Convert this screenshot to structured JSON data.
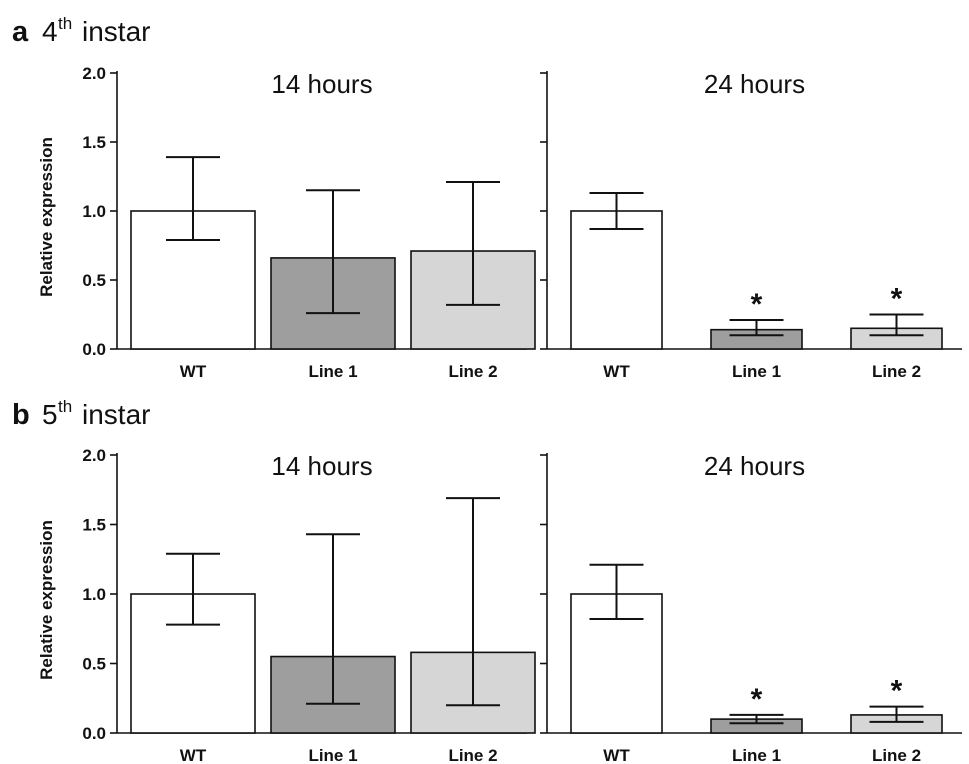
{
  "panels": [
    {
      "letter": "a",
      "title_number": "4",
      "title_sup": "th",
      "title_rest": "instar"
    },
    {
      "letter": "b",
      "title_number": "5",
      "title_sup": "th",
      "title_rest": "instar"
    }
  ],
  "colors": {
    "wt": "#ffffff",
    "line1": "#9e9e9e",
    "line2": "#d6d6d6",
    "stroke": "#111111"
  },
  "chart_data": [
    {
      "type": "bar",
      "panel": "a",
      "title": "14 hours",
      "ylabel": "Relative expression",
      "ylim": [
        0,
        2.0
      ],
      "yticks": [
        "0.0",
        "0.5",
        "1.0",
        "1.5",
        "2.0"
      ],
      "categories": [
        "WT",
        "Line 1",
        "Line 2"
      ],
      "values": [
        1.0,
        0.66,
        0.71
      ],
      "error_low": [
        0.79,
        0.26,
        0.32
      ],
      "error_high": [
        1.39,
        1.15,
        1.21
      ],
      "significance": [
        "",
        "",
        ""
      ]
    },
    {
      "type": "bar",
      "panel": "a",
      "title": "24 hours",
      "ylim": [
        0,
        2.0
      ],
      "categories": [
        "WT",
        "Line 1",
        "Line 2"
      ],
      "values": [
        1.0,
        0.14,
        0.15
      ],
      "error_low": [
        0.87,
        0.1,
        0.1
      ],
      "error_high": [
        1.13,
        0.21,
        0.25
      ],
      "significance": [
        "",
        "*",
        "*"
      ]
    },
    {
      "type": "bar",
      "panel": "b",
      "title": "14 hours",
      "ylabel": "Relative expression",
      "ylim": [
        0,
        2.0
      ],
      "yticks": [
        "0.0",
        "0.5",
        "1.0",
        "1.5",
        "2.0"
      ],
      "categories": [
        "WT",
        "Line 1",
        "Line 2"
      ],
      "values": [
        1.0,
        0.55,
        0.58
      ],
      "error_low": [
        0.78,
        0.21,
        0.2
      ],
      "error_high": [
        1.29,
        1.43,
        1.69
      ],
      "significance": [
        "",
        "",
        ""
      ]
    },
    {
      "type": "bar",
      "panel": "b",
      "title": "24 hours",
      "ylim": [
        0,
        2.0
      ],
      "categories": [
        "WT",
        "Line 1",
        "Line 2"
      ],
      "values": [
        1.0,
        0.1,
        0.13
      ],
      "error_low": [
        0.82,
        0.07,
        0.08
      ],
      "error_high": [
        1.21,
        0.13,
        0.19
      ],
      "significance": [
        "",
        "*",
        "*"
      ]
    }
  ]
}
